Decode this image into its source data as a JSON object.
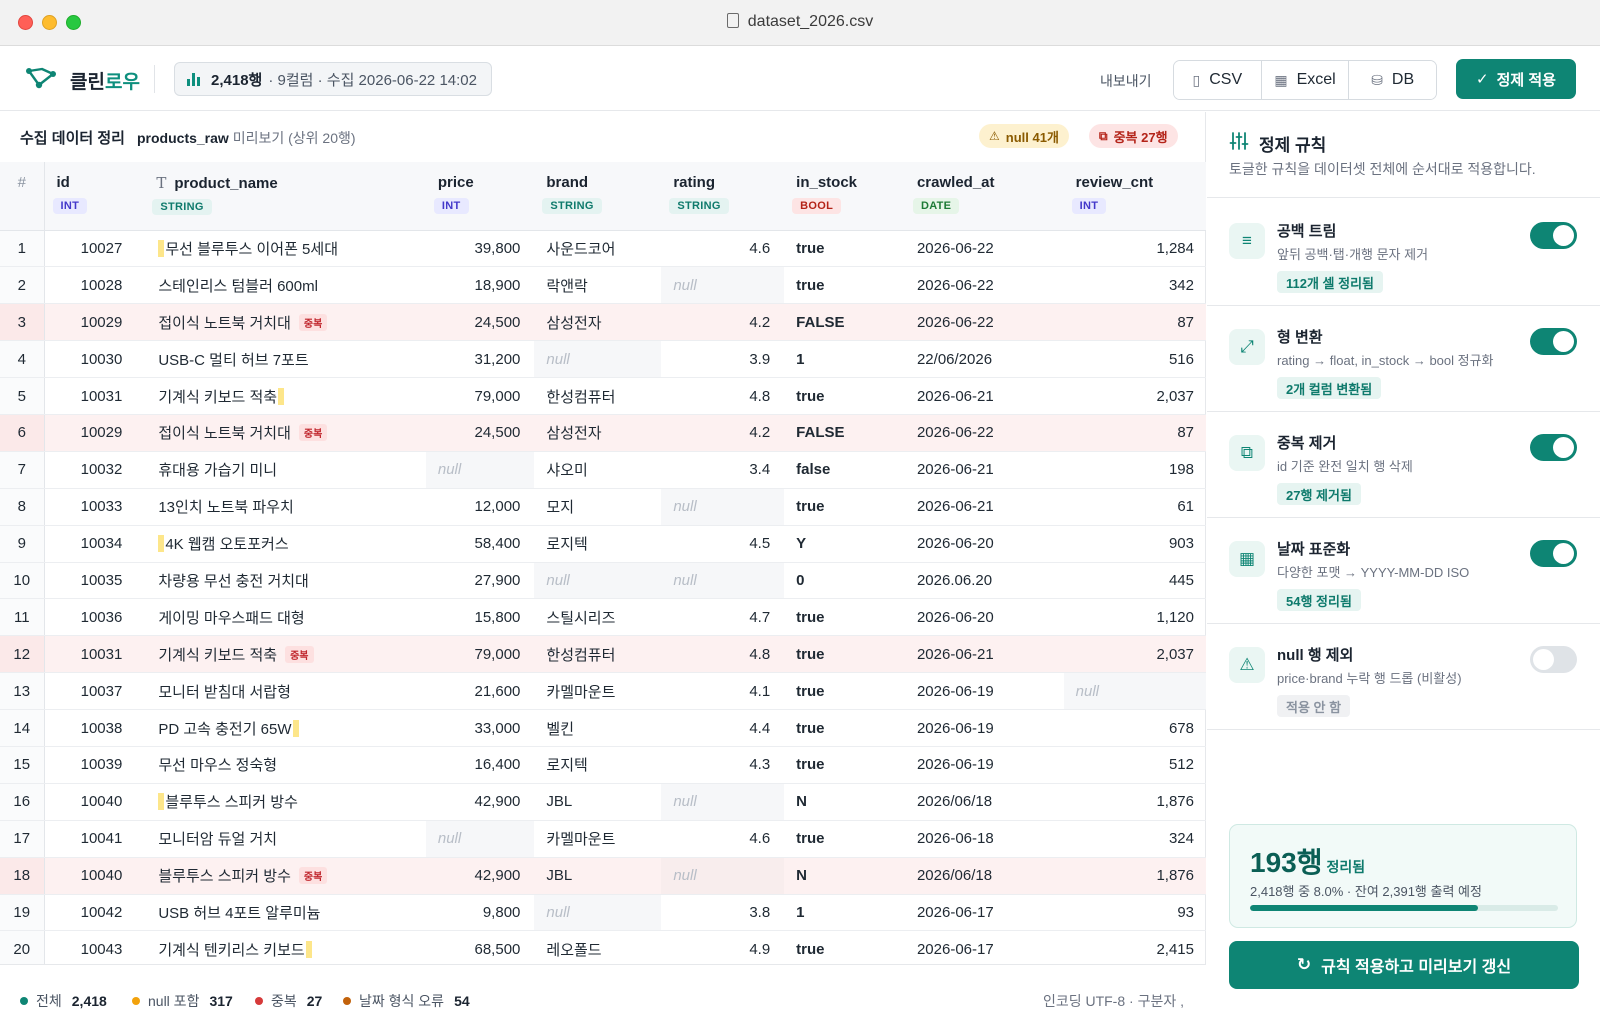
{
  "window": {
    "title": "dataset_2026.csv"
  },
  "app": {
    "name_prefix": "클린",
    "name_accent": "로우"
  },
  "dataset_pill": {
    "rows": "2,418행",
    "meta": "· 9컬럼 · 수집 2026-06-22 14:02"
  },
  "export": {
    "label": "내보내기",
    "csv": "CSV",
    "excel": "Excel",
    "db": "DB"
  },
  "apply_button": "정제 적용",
  "table_header": {
    "title": "수집 데이터 정리",
    "source": "products_raw",
    "preview": "미리보기 (상위 20행)",
    "null_badge": "null 41개",
    "dup_badge": "중복 27행"
  },
  "columns": [
    {
      "name": "#",
      "type": ""
    },
    {
      "name": "id",
      "type": "INT",
      "tag": "int"
    },
    {
      "name": "product_name",
      "type": "STRING",
      "tag": "str",
      "icon": "T"
    },
    {
      "name": "price",
      "type": "INT",
      "tag": "int"
    },
    {
      "name": "brand",
      "type": "STRING",
      "tag": "str"
    },
    {
      "name": "rating",
      "type": "STRING",
      "tag": "str"
    },
    {
      "name": "in_stock",
      "type": "BOOL",
      "tag": "bool"
    },
    {
      "name": "crawled_at",
      "type": "DATE",
      "tag": "date"
    },
    {
      "name": "review_cnt",
      "type": "INT",
      "tag": "int"
    }
  ],
  "null_text": "null",
  "dup_label": "중복",
  "rows": [
    {
      "n": "1",
      "id": "10027",
      "name": "무선 블루투스 이어폰 5세대",
      "ws": "lead",
      "price": "39,800",
      "brand": "사운드코어",
      "rating": "4.6",
      "stock": "true",
      "stock_ok": true,
      "date": "2026-06-22",
      "date_ok": true,
      "rev": "1,284"
    },
    {
      "n": "2",
      "id": "10028",
      "name": "스테인리스 텀블러 600ml",
      "price": "18,900",
      "brand": "락앤락",
      "rating": null,
      "stock": "true",
      "stock_ok": true,
      "date": "2026-06-22",
      "date_ok": true,
      "rev": "342"
    },
    {
      "n": "3",
      "id": "10029",
      "name": "접이식 노트북 거치대",
      "dup": true,
      "price": "24,500",
      "brand": "삼성전자",
      "rating": "4.2",
      "stock": "FALSE",
      "stock_ok": false,
      "date": "2026-06-22",
      "date_ok": true,
      "rev": "87"
    },
    {
      "n": "4",
      "id": "10030",
      "name": "USB-C 멀티 허브 7포트",
      "price": "31,200",
      "brand": null,
      "rating": "3.9",
      "stock": "1",
      "stock_ok": true,
      "date": "22/06/2026",
      "date_ok": false,
      "rev": "516"
    },
    {
      "n": "5",
      "id": "10031",
      "name": "기계식 키보드 적축",
      "ws": "trail",
      "price": "79,000",
      "brand": "한성컴퓨터",
      "rating": "4.8",
      "stock": "true",
      "stock_ok": true,
      "date": "2026-06-21",
      "date_ok": true,
      "rev": "2,037"
    },
    {
      "n": "6",
      "id": "10029",
      "name": "접이식 노트북 거치대",
      "dup": true,
      "price": "24,500",
      "brand": "삼성전자",
      "rating": "4.2",
      "stock": "FALSE",
      "stock_ok": false,
      "date": "2026-06-22",
      "date_ok": true,
      "rev": "87"
    },
    {
      "n": "7",
      "id": "10032",
      "name": "휴대용 가습기 미니",
      "price": null,
      "brand": "샤오미",
      "rating": "3.4",
      "stock": "false",
      "stock_ok": false,
      "date": "2026-06-21",
      "date_ok": true,
      "rev": "198"
    },
    {
      "n": "8",
      "id": "10033",
      "name": "13인치 노트북 파우치",
      "price": "12,000",
      "brand": "모지",
      "rating": null,
      "stock": "true",
      "stock_ok": true,
      "date": "2026-06-21",
      "date_ok": true,
      "rev": "61"
    },
    {
      "n": "9",
      "id": "10034",
      "name": "4K 웹캠 오토포커스",
      "ws": "lead",
      "price": "58,400",
      "brand": "로지텍",
      "rating": "4.5",
      "stock": "Y",
      "stock_ok": true,
      "date": "2026-06-20",
      "date_ok": true,
      "rev": "903"
    },
    {
      "n": "10",
      "id": "10035",
      "name": "차량용 무선 충전 거치대",
      "price": "27,900",
      "brand": null,
      "rating": null,
      "stock": "0",
      "stock_ok": false,
      "date": "2026.06.20",
      "date_ok": false,
      "rev": "445"
    },
    {
      "n": "11",
      "id": "10036",
      "name": "게이밍 마우스패드 대형",
      "price": "15,800",
      "brand": "스틸시리즈",
      "rating": "4.7",
      "stock": "true",
      "stock_ok": true,
      "date": "2026-06-20",
      "date_ok": true,
      "rev": "1,120"
    },
    {
      "n": "12",
      "id": "10031",
      "name": "기계식 키보드 적축",
      "dup": true,
      "price": "79,000",
      "brand": "한성컴퓨터",
      "rating": "4.8",
      "stock": "true",
      "stock_ok": true,
      "date": "2026-06-21",
      "date_ok": true,
      "rev": "2,037"
    },
    {
      "n": "13",
      "id": "10037",
      "name": "모니터 받침대 서랍형",
      "price": "21,600",
      "brand": "카멜마운트",
      "rating": "4.1",
      "stock": "true",
      "stock_ok": true,
      "date": "2026-06-19",
      "date_ok": true,
      "rev": null
    },
    {
      "n": "14",
      "id": "10038",
      "name": "PD 고속 충전기 65W",
      "ws": "trail",
      "price": "33,000",
      "brand": "벨킨",
      "rating": "4.4",
      "stock": "true",
      "stock_ok": true,
      "date": "2026-06-19",
      "date_ok": true,
      "rev": "678"
    },
    {
      "n": "15",
      "id": "10039",
      "name": "무선 마우스 정숙형",
      "price": "16,400",
      "brand": "로지텍",
      "rating": "4.3",
      "stock": "true",
      "stock_ok": true,
      "date": "2026-06-19",
      "date_ok": true,
      "rev": "512"
    },
    {
      "n": "16",
      "id": "10040",
      "name": "블루투스 스피커 방수",
      "ws": "lead",
      "price": "42,900",
      "brand": "JBL",
      "rating": null,
      "stock": "N",
      "stock_ok": false,
      "date": "2026/06/18",
      "date_ok": false,
      "rev": "1,876"
    },
    {
      "n": "17",
      "id": "10041",
      "name": "모니터암 듀얼 거치",
      "price": null,
      "brand": "카멜마운트",
      "rating": "4.6",
      "stock": "true",
      "stock_ok": true,
      "date": "2026-06-18",
      "date_ok": true,
      "rev": "324"
    },
    {
      "n": "18",
      "id": "10040",
      "name": "블루투스 스피커 방수",
      "dup": true,
      "price": "42,900",
      "brand": "JBL",
      "rating": null,
      "stock": "N",
      "stock_ok": false,
      "date": "2026/06/18",
      "date_ok": false,
      "rev": "1,876"
    },
    {
      "n": "19",
      "id": "10042",
      "name": "USB 허브 4포트 알루미늄",
      "price": "9,800",
      "brand": null,
      "rating": "3.8",
      "stock": "1",
      "stock_ok": true,
      "date": "2026-06-17",
      "date_ok": true,
      "rev": "93"
    },
    {
      "n": "20",
      "id": "10043",
      "name": "기계식 텐키리스 키보드",
      "ws": "trail",
      "price": "68,500",
      "brand": "레오폴드",
      "rating": "4.9",
      "stock": "true",
      "stock_ok": true,
      "date": "2026-06-17",
      "date_ok": true,
      "rev": "2,415"
    }
  ],
  "footer": {
    "total_label": "전체",
    "total": "2,418",
    "null_label": "null 포함",
    "null": "317",
    "dup_label": "중복",
    "dup": "27",
    "date_label": "날짜 형식 오류",
    "date_err": "54",
    "encoding": "인코딩 UTF-8 · 구분자 ,"
  },
  "rules_panel": {
    "title": "정제 규칙",
    "desc": "토글한 규칙을 데이터셋 전체에 순서대로 적용합니다.",
    "rules": [
      {
        "name": "공백 트림",
        "desc": "앞뒤 공백·탭·개행 문자 제거",
        "stat": "112개 셀 정리됨",
        "on": true,
        "icon": "≡"
      },
      {
        "name": "형 변환",
        "desc": "rating → float, in_stock → bool 정규화",
        "stat": "2개 컬럼 변환됨",
        "on": true,
        "icon": "⤢"
      },
      {
        "name": "중복 제거",
        "desc": "id 기준 완전 일치 행 삭제",
        "stat": "27행 제거됨",
        "on": true,
        "icon": "⧉"
      },
      {
        "name": "날짜 표준화",
        "desc": "다양한 포맷 → YYYY-MM-DD ISO",
        "stat": "54행 정리됨",
        "on": true,
        "icon": "▦"
      },
      {
        "name": "null 행 제외",
        "desc": "price·brand 누락 행 드롭 (비활성)",
        "stat": "적용 안 함",
        "on": false,
        "icon": "⚠"
      }
    ]
  },
  "summary": {
    "count": "193행",
    "unit": "정리됨",
    "desc": "2,418행 중 8.0% · 잔여 2,391행 출력 예정",
    "progress": 0.74
  },
  "refresh_button": "규칙 적용하고 미리보기 갱신",
  "colors": {
    "accent": "#0e8574",
    "danger": "#c0262d",
    "warn": "#c2620b"
  }
}
